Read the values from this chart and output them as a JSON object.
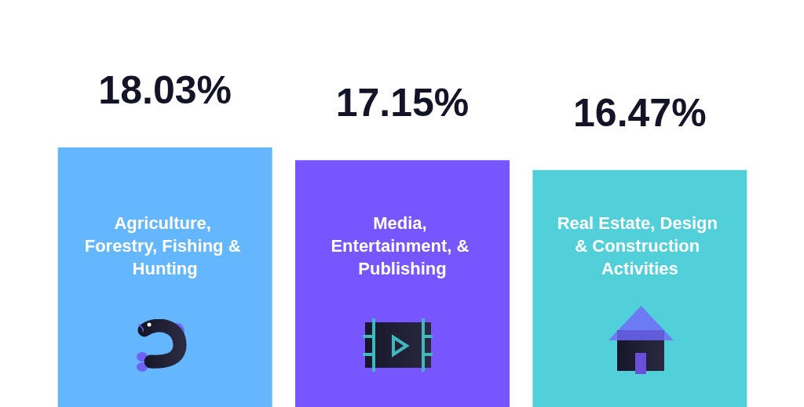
{
  "chart_data": {
    "type": "bar",
    "categories": [
      "Agriculture, Forestry, Fishing & Hunting",
      "Media, Entertainment, & Publishing",
      "Real Estate, Design & Construction Activities"
    ],
    "values": [
      18.03,
      17.15,
      16.47
    ],
    "colors": [
      "#64b7fd",
      "#7856ff",
      "#52d0da"
    ],
    "value_labels": [
      "18.03%",
      "17.15%",
      "16.47%"
    ],
    "tick_labels": "x"
  }
}
